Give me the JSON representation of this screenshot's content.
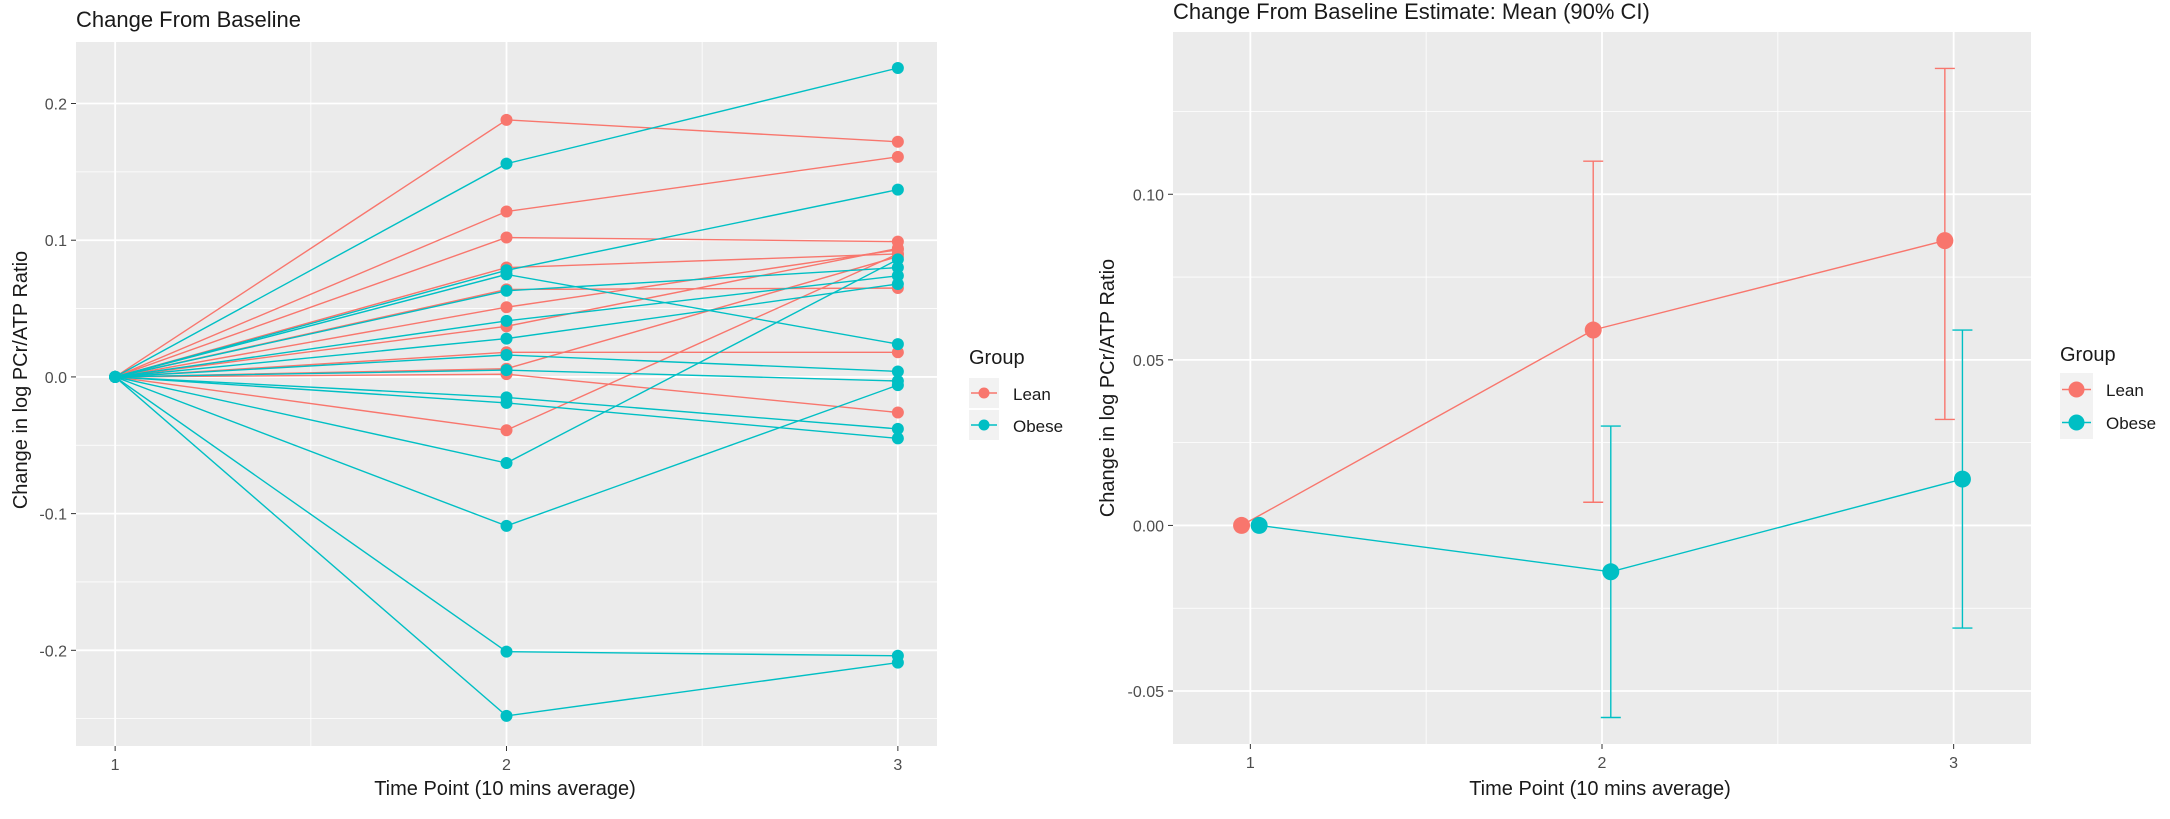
{
  "colors": {
    "lean": "#F8766D",
    "obese": "#00BFC4",
    "panel": "#EBEBEB",
    "grid": "#FFFFFF",
    "axis_text": "#4D4D4D",
    "text": "#1A1A1A"
  },
  "chart_data": [
    {
      "type": "line",
      "title": "Change From Baseline",
      "xlabel": "Time Point (10 mins average)",
      "ylabel": "Change in log PCr/ATP Ratio",
      "x": [
        1,
        2,
        3
      ],
      "x_tick_labels": [
        "1",
        "2",
        "3"
      ],
      "xlim": [
        0.9,
        3.1
      ],
      "ylim": [
        -0.27,
        0.245
      ],
      "y_ticks": [
        -0.2,
        -0.1,
        0.0,
        0.1,
        0.2
      ],
      "y_tick_labels": [
        "-0.2",
        "-0.1",
        "0.0",
        "0.1",
        "0.2"
      ],
      "legend": {
        "title": "Group",
        "position": "right",
        "entries": [
          "Lean",
          "Obese"
        ]
      },
      "series": [
        {
          "name": "Lean",
          "values": [
            0,
            0.188,
            0.172
          ]
        },
        {
          "name": "Lean",
          "values": [
            0,
            0.121,
            0.161
          ]
        },
        {
          "name": "Lean",
          "values": [
            0,
            0.102,
            0.099
          ]
        },
        {
          "name": "Lean",
          "values": [
            0,
            0.08,
            0.09
          ]
        },
        {
          "name": "Lean",
          "values": [
            0,
            0.064,
            0.065
          ]
        },
        {
          "name": "Lean",
          "values": [
            0,
            0.051,
            0.093
          ]
        },
        {
          "name": "Lean",
          "values": [
            0,
            0.037,
            0.094
          ]
        },
        {
          "name": "Lean",
          "values": [
            0,
            0.018,
            0.018
          ]
        },
        {
          "name": "Lean",
          "values": [
            0,
            0.006,
            0.088
          ]
        },
        {
          "name": "Lean",
          "values": [
            0,
            0.002,
            -0.026
          ]
        },
        {
          "name": "Lean",
          "values": [
            0,
            -0.039,
            0.09
          ]
        },
        {
          "name": "Obese",
          "values": [
            0,
            0.156,
            0.226
          ]
        },
        {
          "name": "Obese",
          "values": [
            0,
            0.078,
            0.137
          ]
        },
        {
          "name": "Obese",
          "values": [
            0,
            0.075,
            0.024
          ]
        },
        {
          "name": "Obese",
          "values": [
            0,
            0.063,
            0.08
          ]
        },
        {
          "name": "Obese",
          "values": [
            0,
            0.041,
            0.074
          ]
        },
        {
          "name": "Obese",
          "values": [
            0,
            0.028,
            0.068
          ]
        },
        {
          "name": "Obese",
          "values": [
            0,
            0.016,
            0.004
          ]
        },
        {
          "name": "Obese",
          "values": [
            0,
            0.005,
            -0.003
          ]
        },
        {
          "name": "Obese",
          "values": [
            0,
            -0.015,
            -0.038
          ]
        },
        {
          "name": "Obese",
          "values": [
            0,
            -0.019,
            -0.045
          ]
        },
        {
          "name": "Obese",
          "values": [
            0,
            -0.063,
            0.086
          ]
        },
        {
          "name": "Obese",
          "values": [
            0,
            -0.109,
            -0.006
          ]
        },
        {
          "name": "Obese",
          "values": [
            0,
            -0.201,
            -0.204
          ]
        },
        {
          "name": "Obese",
          "values": [
            0,
            -0.248,
            -0.209
          ]
        }
      ]
    },
    {
      "type": "line",
      "title": "Change From Baseline Estimate: Mean (90% CI)",
      "xlabel": "Time Point (10 mins average)",
      "ylabel": "Change in log PCr/ATP Ratio",
      "x": [
        1,
        2,
        3
      ],
      "x_tick_labels": [
        "1",
        "2",
        "3"
      ],
      "xlim": [
        0.78,
        3.22
      ],
      "ylim": [
        -0.066,
        0.149
      ],
      "y_ticks": [
        -0.05,
        0.0,
        0.05,
        0.1
      ],
      "y_tick_labels": [
        "-0.05",
        "0.00",
        "0.05",
        "0.10"
      ],
      "dodge": 0.05,
      "legend": {
        "title": "Group",
        "position": "right",
        "entries": [
          "Lean",
          "Obese"
        ]
      },
      "series": [
        {
          "name": "Lean",
          "mean": [
            0,
            0.059,
            0.086
          ],
          "lower": [
            null,
            0.007,
            0.032
          ],
          "upper": [
            null,
            0.11,
            0.138
          ]
        },
        {
          "name": "Obese",
          "mean": [
            0,
            -0.014,
            0.014
          ],
          "lower": [
            null,
            -0.058,
            -0.031
          ],
          "upper": [
            null,
            0.03,
            0.059
          ]
        }
      ]
    }
  ]
}
